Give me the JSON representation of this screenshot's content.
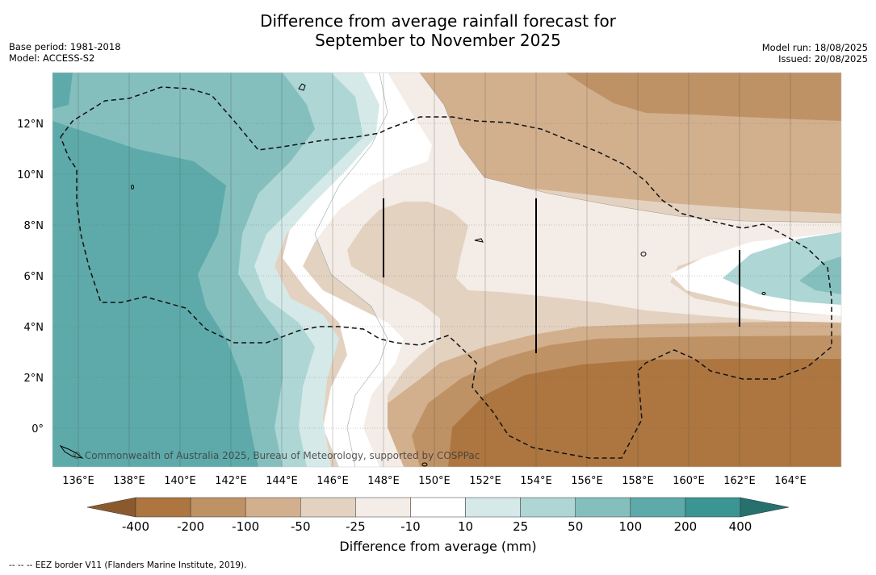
{
  "title_line1": "Difference from average rainfall forecast for",
  "title_line2": "September to November 2025",
  "meta_left": {
    "base_period": "Base period: 1981-2018",
    "model": "Model: ACCESS-S2"
  },
  "meta_right": {
    "model_run": "Model run: 18/08/2025",
    "issued": "Issued: 20/08/2025"
  },
  "copyright": "© Commonwealth of Australia 2025, Bureau of Meteorology, supported by COSPPac",
  "lat_labels": [
    "12°N",
    "10°N",
    "8°N",
    "6°N",
    "4°N",
    "2°N",
    "0°"
  ],
  "lon_labels": [
    "136°E",
    "138°E",
    "140°E",
    "142°E",
    "144°E",
    "146°E",
    "148°E",
    "150°E",
    "152°E",
    "154°E",
    "156°E",
    "158°E",
    "160°E",
    "162°E",
    "164°E"
  ],
  "colorbar": {
    "title": "Difference from average (mm)",
    "labels": [
      "-400",
      "-200",
      "-100",
      "-50",
      "-25",
      "-10",
      "10",
      "25",
      "50",
      "100",
      "200",
      "400"
    ],
    "colors": [
      "#8a5a2e",
      "#ad7640",
      "#bf9265",
      "#d2b08e",
      "#e4d2c1",
      "#f4ece6",
      "#ffffff",
      "#d5e9e8",
      "#add6d5",
      "#84bfbe",
      "#5eaaaa",
      "#3a9593",
      "#26706e"
    ]
  },
  "footnote": "--  --  -- EEZ border V11 (Flanders Marine Institute, 2019)."
}
